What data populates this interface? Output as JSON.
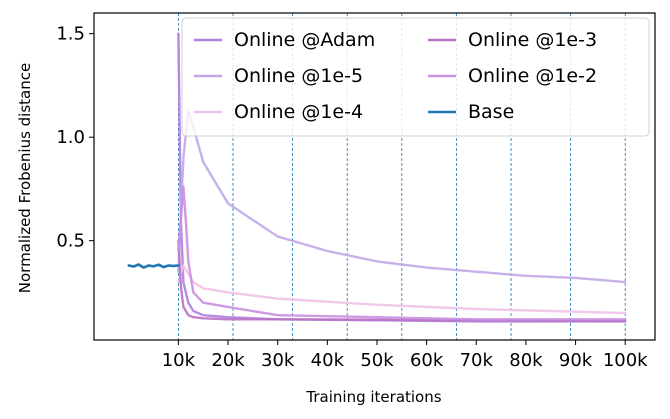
{
  "chart_data": {
    "type": "line",
    "title": "",
    "xlabel": "Training iterations",
    "ylabel": "Normalized Frobenius distance",
    "xlim": [
      -7000,
      106000
    ],
    "ylim": [
      0.02,
      1.6
    ],
    "x_ticks": [
      10000,
      20000,
      30000,
      40000,
      50000,
      60000,
      70000,
      80000,
      90000,
      100000
    ],
    "x_tick_labels": [
      "10k",
      "20k",
      "30k",
      "40k",
      "50k",
      "60k",
      "70k",
      "80k",
      "90k",
      "100k"
    ],
    "y_ticks": [
      0.5,
      1.0,
      1.5
    ],
    "y_tick_labels": [
      "0.5",
      "1.0",
      "1.5"
    ],
    "vlines": [
      10000,
      21000,
      33000,
      44000,
      55000,
      66000,
      77000,
      89000,
      100000
    ],
    "vline_color": "#1f77b4",
    "legend_position": "upper-right",
    "legend_columns": 2,
    "grid": false,
    "series": [
      {
        "name": "Online @Adam",
        "color": "#b07fe0",
        "x": [
          10000,
          10500,
          11000,
          12000,
          13000,
          15000,
          20000,
          30000,
          50000,
          70000,
          100000
        ],
        "y": [
          1.5,
          0.6,
          0.3,
          0.2,
          0.16,
          0.14,
          0.13,
          0.12,
          0.115,
          0.11,
          0.11
        ]
      },
      {
        "name": "Online @1e-5",
        "color": "#c0a8e8",
        "x": [
          10000,
          11000,
          12000,
          13000,
          15000,
          20000,
          30000,
          40000,
          50000,
          60000,
          70000,
          80000,
          90000,
          100000
        ],
        "y": [
          0.35,
          0.9,
          1.13,
          1.05,
          0.88,
          0.68,
          0.52,
          0.45,
          0.4,
          0.37,
          0.35,
          0.33,
          0.32,
          0.3
        ]
      },
      {
        "name": "Online @1e-4",
        "color": "#efc2e8",
        "x": [
          10000,
          11000,
          12000,
          13000,
          15000,
          20000,
          30000,
          50000,
          70000,
          100000
        ],
        "y": [
          0.3,
          0.38,
          0.34,
          0.3,
          0.27,
          0.25,
          0.22,
          0.19,
          0.17,
          0.15
        ]
      },
      {
        "name": "Online @1e-3",
        "color": "#b973c4",
        "x": [
          10000,
          10500,
          11000,
          12000,
          13000,
          15000,
          20000,
          30000,
          50000,
          70000,
          100000
        ],
        "y": [
          0.5,
          0.28,
          0.18,
          0.14,
          0.13,
          0.125,
          0.12,
          0.12,
          0.118,
          0.115,
          0.112
        ]
      },
      {
        "name": "Online @1e-2",
        "color": "#c98fe0",
        "x": [
          10000,
          11000,
          11500,
          12000,
          13000,
          15000,
          20000,
          30000,
          50000,
          70000,
          100000
        ],
        "y": [
          0.45,
          0.76,
          0.6,
          0.4,
          0.25,
          0.2,
          0.18,
          0.14,
          0.13,
          0.12,
          0.12
        ]
      },
      {
        "name": "Base",
        "color": "#1f77b4",
        "x": [
          0,
          1000,
          2000,
          3000,
          4000,
          5000,
          6000,
          7000,
          8000,
          9000,
          10000
        ],
        "y": [
          0.38,
          0.375,
          0.385,
          0.37,
          0.38,
          0.376,
          0.384,
          0.372,
          0.38,
          0.378,
          0.38
        ]
      }
    ],
    "legend_order": [
      0,
      3,
      1,
      4,
      2,
      5
    ]
  }
}
